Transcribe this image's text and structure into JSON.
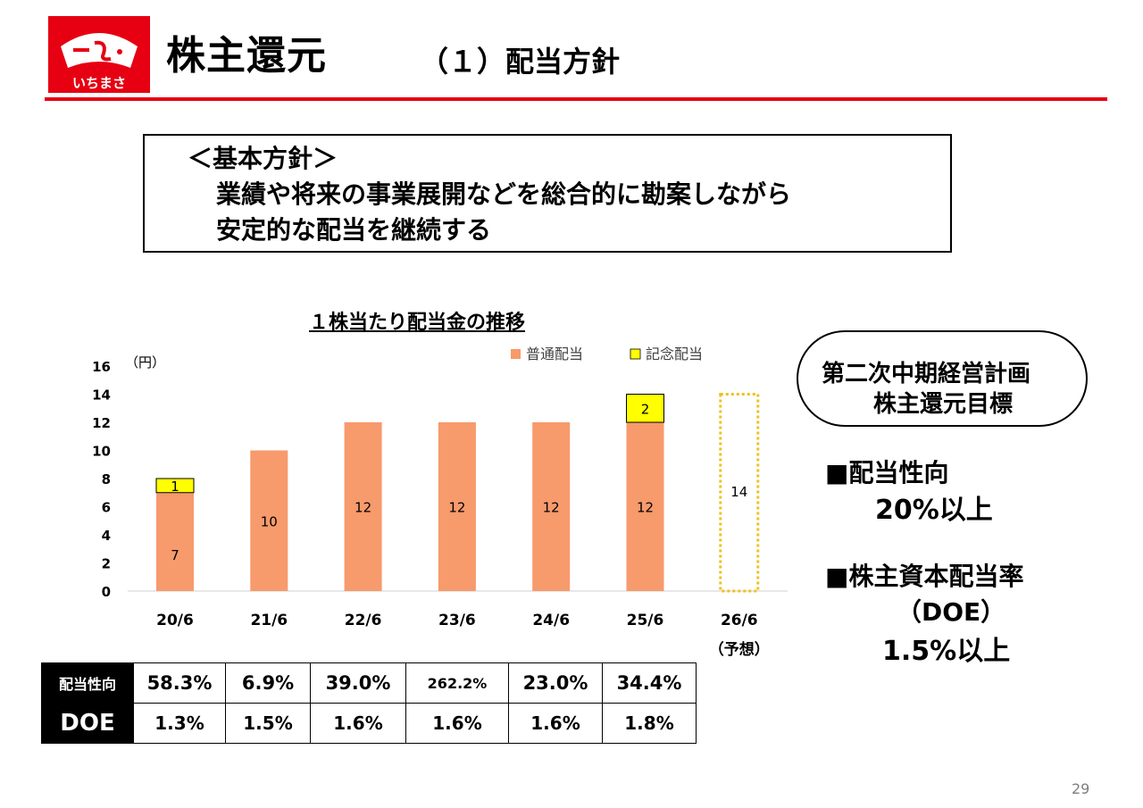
{
  "header": {
    "logo_text": "いちまさ",
    "title": "株主還元",
    "subtitle": "（１）配当方針"
  },
  "policy": {
    "heading": "＜基本方針＞",
    "line1": "業績や将来の事業展開などを総合的に勘案しながら",
    "line2": "安定的な配当を継続する"
  },
  "chart_title": "１株当たり配当金の推移",
  "chart_data": {
    "type": "bar",
    "stacked": true,
    "unit_label": "（円）",
    "categories": [
      "20/6",
      "21/6",
      "22/6",
      "23/6",
      "24/6",
      "25/6",
      "26/6"
    ],
    "category_sublabels": [
      "",
      "",
      "",
      "",
      "",
      "",
      "（予想）"
    ],
    "ylim": [
      0,
      16
    ],
    "yticks": [
      "0",
      "2",
      "4",
      "6",
      "8",
      "10",
      "12",
      "14",
      "16"
    ],
    "legend_position": "top-right",
    "series": [
      {
        "name": "普通配当",
        "color": "#f79a6c",
        "values": [
          7,
          10,
          12,
          12,
          12,
          12,
          null
        ]
      },
      {
        "name": "記念配当",
        "color": "#ffff00",
        "values": [
          1,
          null,
          null,
          null,
          null,
          2,
          null
        ]
      }
    ],
    "forecast": {
      "category": "26/6",
      "value": 14,
      "label": "14",
      "style": "dotted-outline",
      "color": "#f0c020"
    }
  },
  "metrics": {
    "payout_label": "配当性向",
    "payout": [
      "58.3%",
      "6.9%",
      "39.0%",
      "262.2%",
      "23.0%",
      "34.4%"
    ],
    "doe_label": "DOE",
    "doe": [
      "1.3%",
      "1.5%",
      "1.6%",
      "1.6%",
      "1.6%",
      "1.8%"
    ]
  },
  "plan": {
    "line1": "第二次中期経営計画",
    "line2": "株主還元目標",
    "target1_label": "■配当性向",
    "target1_value": "20%以上",
    "target2_label": "■株主資本配当率",
    "target2_sub": "（DOE）",
    "target2_value": "1.5%以上"
  },
  "page_number": "29"
}
